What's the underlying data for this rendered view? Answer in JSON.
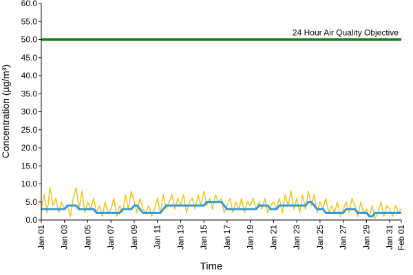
{
  "chart_data": {
    "type": "line",
    "xlabel": "Time",
    "ylabel": "Concentration (µg/m³)",
    "x": [
      0,
      0.25,
      0.5,
      0.75,
      1,
      1.25,
      1.5,
      1.75,
      2,
      2.25,
      2.5,
      2.75,
      3,
      3.25,
      3.5,
      3.75,
      4,
      4.25,
      4.5,
      4.75,
      5,
      5.25,
      5.5,
      5.75,
      6,
      6.25,
      6.5,
      6.75,
      7,
      7.25,
      7.5,
      7.75,
      8,
      8.25,
      8.5,
      8.75,
      9,
      9.25,
      9.5,
      9.75,
      10,
      10.25,
      10.5,
      10.75,
      11,
      11.25,
      11.5,
      11.75,
      12,
      12.25,
      12.5,
      12.75,
      13,
      13.25,
      13.5,
      13.75,
      14,
      14.25,
      14.5,
      14.75,
      15,
      15.25,
      15.5,
      15.75,
      16,
      16.25,
      16.5,
      16.75,
      17,
      17.25,
      17.5,
      17.75,
      18,
      18.25,
      18.5,
      18.75,
      19,
      19.25,
      19.5,
      19.75,
      20,
      20.25,
      20.5,
      20.75,
      21,
      21.25,
      21.5,
      21.75,
      22,
      22.25,
      22.5,
      22.75,
      23,
      23.25,
      23.5,
      23.75,
      24,
      24.25,
      24.5,
      24.75,
      25,
      25.25,
      25.5,
      25.75,
      26,
      26.25,
      26.5,
      26.75,
      27,
      27.25,
      27.5,
      27.75,
      28,
      28.25,
      28.5,
      28.75,
      29,
      29.25,
      29.5,
      29.75,
      30,
      30.25,
      30.5,
      30.75,
      31
    ],
    "series": [
      {
        "color": "#f2c21b",
        "width": 1.5,
        "values": [
          3,
          7,
          2,
          9,
          4,
          6,
          2,
          5,
          3,
          4,
          1,
          6,
          9,
          3,
          8,
          2,
          5,
          3,
          6,
          2,
          4,
          1,
          5,
          2,
          3,
          6,
          1,
          4,
          2,
          7,
          3,
          8,
          5,
          2,
          6,
          3,
          2,
          4,
          1,
          3,
          6,
          2,
          7,
          3,
          5,
          7,
          3,
          6,
          4,
          7,
          2,
          5,
          6,
          3,
          7,
          4,
          8,
          4,
          6,
          3,
          7,
          5,
          6,
          2,
          4,
          6,
          2,
          5,
          3,
          6,
          2,
          5,
          4,
          6,
          3,
          5,
          3,
          6,
          2,
          4,
          5,
          3,
          6,
          2,
          7,
          4,
          8,
          3,
          6,
          2,
          7,
          3,
          8,
          4,
          7,
          2,
          5,
          3,
          6,
          2,
          4,
          2,
          5,
          1,
          3,
          5,
          2,
          6,
          4,
          1,
          5,
          2,
          3,
          1,
          4,
          0.5,
          2,
          5,
          1,
          4,
          3,
          1,
          4,
          2,
          3
        ]
      },
      {
        "color": "#2b9be0",
        "width": 3,
        "values": [
          3,
          3,
          3,
          3,
          3,
          3,
          3,
          3,
          3,
          4,
          4,
          4,
          4,
          3,
          3,
          3,
          3,
          3,
          3,
          2,
          2,
          2,
          2,
          2,
          2,
          2,
          2,
          2,
          3,
          3,
          3,
          3,
          4,
          4,
          3,
          2,
          2,
          2,
          2,
          2,
          2,
          2,
          3,
          4,
          4,
          4,
          4,
          4,
          4,
          4,
          4,
          4,
          4,
          4,
          4,
          4,
          4,
          5,
          5,
          5,
          5,
          5,
          5,
          4,
          3,
          3,
          3,
          3,
          3,
          3,
          3,
          3,
          3,
          3,
          3,
          4,
          4,
          4,
          4,
          3,
          3,
          3,
          4,
          4,
          4,
          4,
          4,
          4,
          4,
          4,
          4,
          4,
          5,
          5,
          4,
          3,
          3,
          3,
          2,
          2,
          2,
          2,
          2,
          2,
          2,
          3,
          3,
          3,
          3,
          2,
          2,
          2,
          2,
          1,
          1,
          2,
          2,
          2,
          2,
          2,
          2,
          2,
          2,
          2,
          2
        ]
      }
    ],
    "objective": {
      "label": "24 Hour Air Quality Objective",
      "value": 50,
      "color": "#1e7a1e"
    },
    "xlim": [
      0,
      31
    ],
    "xticks": [
      {
        "value": 0,
        "label": "Jan 01"
      },
      {
        "value": 2,
        "label": "Jan 03"
      },
      {
        "value": 4,
        "label": "Jan 05"
      },
      {
        "value": 6,
        "label": "Jan 07"
      },
      {
        "value": 8,
        "label": "Jan 09"
      },
      {
        "value": 10,
        "label": "Jan 11"
      },
      {
        "value": 12,
        "label": "Jan 13"
      },
      {
        "value": 14,
        "label": "Jan 15"
      },
      {
        "value": 16,
        "label": "Jan 17"
      },
      {
        "value": 18,
        "label": "Jan 19"
      },
      {
        "value": 20,
        "label": "Jan 21"
      },
      {
        "value": 22,
        "label": "Jan 23"
      },
      {
        "value": 24,
        "label": "Jan 25"
      },
      {
        "value": 26,
        "label": "Jan 27"
      },
      {
        "value": 28,
        "label": "Jan 29"
      },
      {
        "value": 30,
        "label": "Jan 31"
      },
      {
        "value": 31,
        "label": "Feb 01"
      }
    ],
    "ylim": [
      0,
      60
    ],
    "yticks": [
      {
        "value": 0,
        "label": "0.0"
      },
      {
        "value": 5,
        "label": "5.0"
      },
      {
        "value": 10,
        "label": "10.0"
      },
      {
        "value": 15,
        "label": "15.0"
      },
      {
        "value": 20,
        "label": "20.0"
      },
      {
        "value": 25,
        "label": "25.0"
      },
      {
        "value": 30,
        "label": "30.0"
      },
      {
        "value": 35,
        "label": "35.0"
      },
      {
        "value": 40,
        "label": "40.0"
      },
      {
        "value": 45,
        "label": "45.0"
      },
      {
        "value": 50,
        "label": "50.0"
      },
      {
        "value": 55,
        "label": "55.0"
      },
      {
        "value": 60,
        "label": "60.0"
      }
    ],
    "grid": false
  }
}
